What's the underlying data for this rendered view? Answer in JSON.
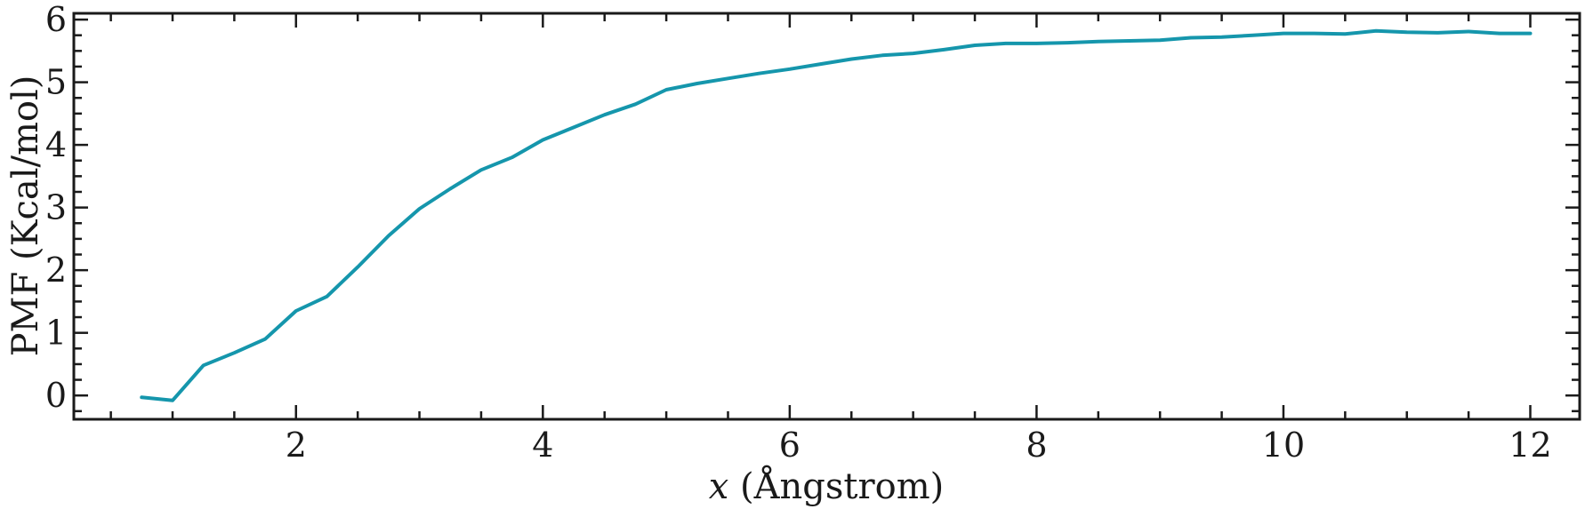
{
  "chart_data": {
    "type": "line",
    "title": "",
    "xlabel_var": "x",
    "xlabel_unit": " (Ångstrom)",
    "ylabel": "PMF (Kcal/mol)",
    "xlim": [
      0.2,
      12.4
    ],
    "ylim": [
      -0.38,
      6.1
    ],
    "xticks": [
      2,
      4,
      6,
      8,
      10,
      12
    ],
    "xtick_labels": [
      "2",
      "4",
      "6",
      "8",
      "10",
      "12"
    ],
    "yticks": [
      0,
      1,
      2,
      3,
      4,
      5,
      6
    ],
    "ytick_labels": [
      "0",
      "1",
      "2",
      "3",
      "4",
      "5",
      "6"
    ],
    "grid": false,
    "line_color": "#1596ac",
    "series": [
      {
        "x": [
          0.75,
          1.0,
          1.25,
          1.5,
          1.75,
          2.0,
          2.25,
          2.5,
          2.75,
          3.0,
          3.25,
          3.5,
          3.75,
          4.0,
          4.25,
          4.5,
          4.75,
          5.0,
          5.25,
          5.5,
          5.75,
          6.0,
          6.25,
          6.5,
          6.75,
          7.0,
          7.25,
          7.5,
          7.75,
          8.0,
          8.25,
          8.5,
          8.75,
          9.0,
          9.25,
          9.5,
          9.75,
          10.0,
          10.25,
          10.5,
          10.75,
          11.0,
          11.25,
          11.5,
          11.75,
          12.0
        ],
        "y": [
          -0.03,
          -0.08,
          0.48,
          0.68,
          0.9,
          1.35,
          1.58,
          2.05,
          2.55,
          2.98,
          3.3,
          3.6,
          3.8,
          4.08,
          4.28,
          4.48,
          4.65,
          4.88,
          4.98,
          5.06,
          5.14,
          5.21,
          5.29,
          5.37,
          5.43,
          5.46,
          5.52,
          5.59,
          5.62,
          5.62,
          5.63,
          5.65,
          5.66,
          5.67,
          5.71,
          5.72,
          5.75,
          5.78,
          5.78,
          5.77,
          5.82,
          5.8,
          5.79,
          5.81,
          5.78,
          5.78
        ]
      }
    ]
  }
}
